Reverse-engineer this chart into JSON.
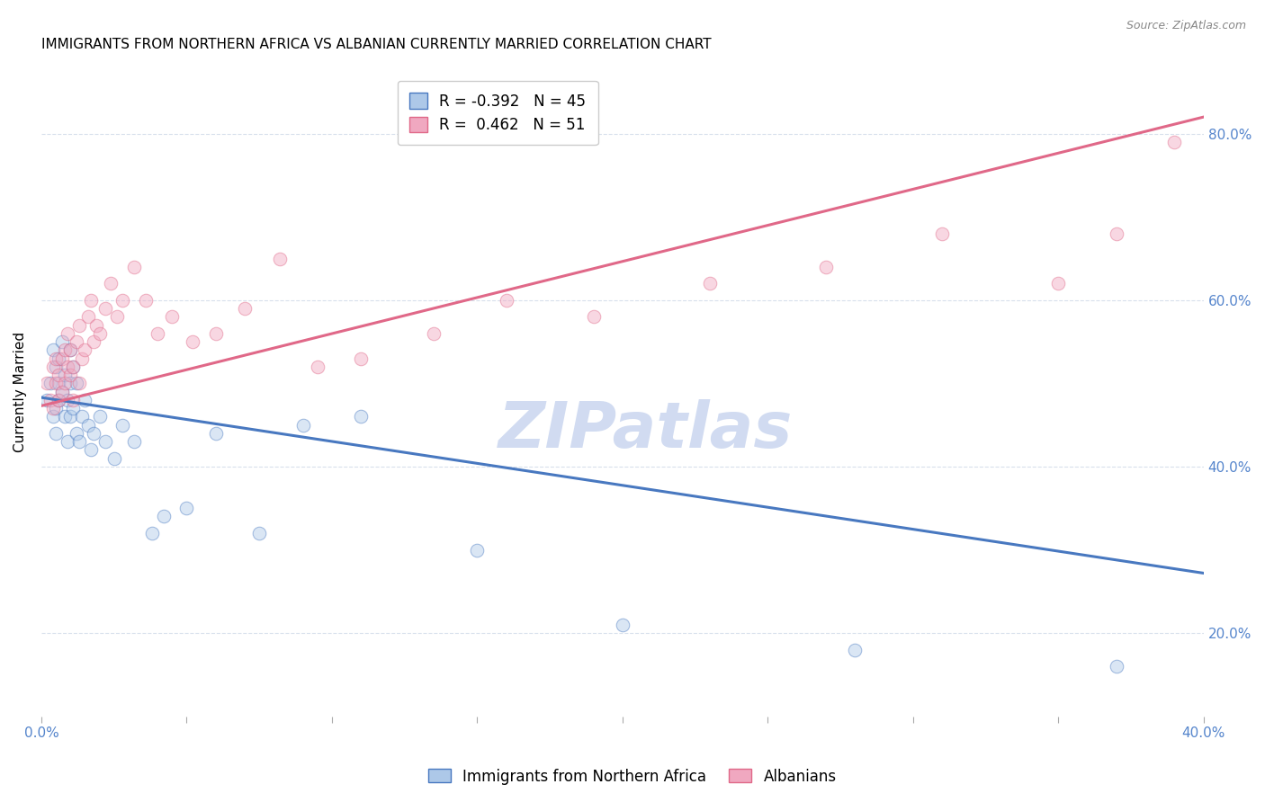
{
  "title": "IMMIGRANTS FROM NORTHERN AFRICA VS ALBANIAN CURRENTLY MARRIED CORRELATION CHART",
  "source_text": "Source: ZipAtlas.com",
  "ylabel": "Currently Married",
  "xlim": [
    0.0,
    0.4
  ],
  "ylim": [
    0.1,
    0.88
  ],
  "ytick_labels": [
    "20.0%",
    "40.0%",
    "60.0%",
    "80.0%"
  ],
  "ytick_values": [
    0.2,
    0.4,
    0.6,
    0.8
  ],
  "xtick_values": [
    0.0,
    0.05,
    0.1,
    0.15,
    0.2,
    0.25,
    0.3,
    0.35,
    0.4
  ],
  "xtick_labels_visible": {
    "0.0": "0.0%",
    "0.40": "40.0%"
  },
  "blue_R": "-0.392",
  "blue_N": "45",
  "pink_R": "0.462",
  "pink_N": "51",
  "blue_color": "#adc8e8",
  "blue_line_color": "#4878c0",
  "pink_color": "#f0a8c0",
  "pink_line_color": "#e06888",
  "blue_label": "Immigrants from Northern Africa",
  "pink_label": "Albanians",
  "watermark": "ZIPatlas",
  "watermark_color": "#ccd8f0",
  "blue_line_x0": 0.0,
  "blue_line_y0": 0.483,
  "blue_line_x1": 0.4,
  "blue_line_y1": 0.272,
  "pink_line_x0": 0.0,
  "pink_line_y0": 0.473,
  "pink_line_x1": 0.4,
  "pink_line_y1": 0.82,
  "blue_x": [
    0.002,
    0.003,
    0.004,
    0.004,
    0.005,
    0.005,
    0.005,
    0.006,
    0.006,
    0.006,
    0.007,
    0.007,
    0.008,
    0.008,
    0.009,
    0.009,
    0.01,
    0.01,
    0.01,
    0.011,
    0.011,
    0.012,
    0.012,
    0.013,
    0.014,
    0.015,
    0.016,
    0.017,
    0.018,
    0.02,
    0.022,
    0.025,
    0.028,
    0.032,
    0.038,
    0.042,
    0.05,
    0.06,
    0.075,
    0.09,
    0.11,
    0.15,
    0.2,
    0.28,
    0.37
  ],
  "blue_y": [
    0.48,
    0.5,
    0.46,
    0.54,
    0.47,
    0.52,
    0.44,
    0.48,
    0.5,
    0.53,
    0.55,
    0.49,
    0.51,
    0.46,
    0.48,
    0.43,
    0.5,
    0.46,
    0.54,
    0.47,
    0.52,
    0.44,
    0.5,
    0.43,
    0.46,
    0.48,
    0.45,
    0.42,
    0.44,
    0.46,
    0.43,
    0.41,
    0.45,
    0.43,
    0.32,
    0.34,
    0.35,
    0.44,
    0.32,
    0.45,
    0.46,
    0.3,
    0.21,
    0.18,
    0.16
  ],
  "pink_x": [
    0.002,
    0.003,
    0.004,
    0.004,
    0.005,
    0.005,
    0.006,
    0.006,
    0.007,
    0.007,
    0.008,
    0.008,
    0.009,
    0.009,
    0.01,
    0.01,
    0.011,
    0.011,
    0.012,
    0.013,
    0.013,
    0.014,
    0.015,
    0.016,
    0.017,
    0.018,
    0.019,
    0.02,
    0.022,
    0.024,
    0.026,
    0.028,
    0.032,
    0.036,
    0.04,
    0.045,
    0.052,
    0.06,
    0.07,
    0.082,
    0.095,
    0.11,
    0.135,
    0.16,
    0.19,
    0.23,
    0.27,
    0.31,
    0.35,
    0.37,
    0.39
  ],
  "pink_y": [
    0.5,
    0.48,
    0.52,
    0.47,
    0.5,
    0.53,
    0.48,
    0.51,
    0.49,
    0.53,
    0.5,
    0.54,
    0.52,
    0.56,
    0.51,
    0.54,
    0.48,
    0.52,
    0.55,
    0.5,
    0.57,
    0.53,
    0.54,
    0.58,
    0.6,
    0.55,
    0.57,
    0.56,
    0.59,
    0.62,
    0.58,
    0.6,
    0.64,
    0.6,
    0.56,
    0.58,
    0.55,
    0.56,
    0.59,
    0.65,
    0.52,
    0.53,
    0.56,
    0.6,
    0.58,
    0.62,
    0.64,
    0.68,
    0.62,
    0.68,
    0.79
  ],
  "title_fontsize": 11,
  "axis_label_fontsize": 11,
  "tick_fontsize": 11,
  "legend_fontsize": 12,
  "watermark_fontsize": 52,
  "marker_size": 110,
  "marker_alpha": 0.45,
  "line_width": 2.2,
  "background_color": "#ffffff",
  "grid_color": "#d8e0ec",
  "right_yaxis_color": "#5585cc",
  "xtick_color": "#5585cc"
}
